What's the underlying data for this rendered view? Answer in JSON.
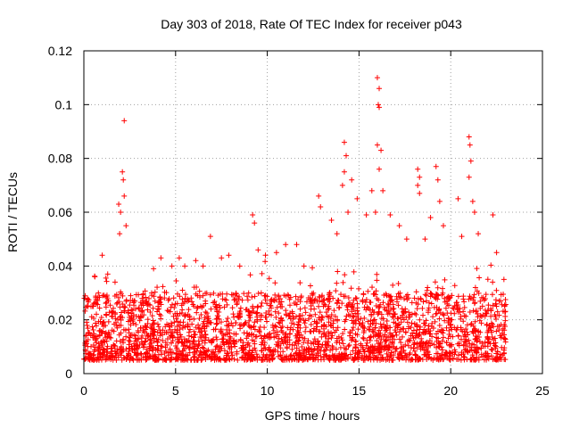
{
  "chart_data": {
    "type": "scatter",
    "title": "Day 303 of 2018, Rate Of TEC Index for receiver p043",
    "xlabel": "GPS time / hours",
    "ylabel": "ROTI / TECUs",
    "xlim": [
      0,
      25
    ],
    "ylim": [
      0,
      0.12
    ],
    "xticks": [
      0,
      5,
      10,
      15,
      20,
      25
    ],
    "yticks": [
      0,
      0.02,
      0.04,
      0.06,
      0.08,
      0.1,
      0.12
    ],
    "xtick_labels": [
      "0",
      "5",
      "10",
      "15",
      "20",
      "25"
    ],
    "ytick_labels": [
      "0",
      "0.02",
      "0.04",
      "0.06",
      "0.08",
      "0.1",
      "0.12"
    ],
    "grid": true,
    "marker": "+",
    "marker_color": "#ff0000",
    "x_data_range": [
      0,
      23
    ],
    "baseline_band": [
      0.005,
      0.03
    ],
    "series": [
      {
        "name": "ROTI",
        "note": "dense cloud of several thousand points, mostly 0.005–0.03 TECU; listed points are visible outliers/peaks",
        "points": [
          [
            2.2,
            0.094
          ],
          [
            2.1,
            0.075
          ],
          [
            2.15,
            0.072
          ],
          [
            2.2,
            0.066
          ],
          [
            1.9,
            0.063
          ],
          [
            2.0,
            0.06
          ],
          [
            1.95,
            0.052
          ],
          [
            2.3,
            0.055
          ],
          [
            1.0,
            0.044
          ],
          [
            0.6,
            0.036
          ],
          [
            1.3,
            0.037
          ],
          [
            1.7,
            0.034
          ],
          [
            3.8,
            0.039
          ],
          [
            4.2,
            0.043
          ],
          [
            4.8,
            0.04
          ],
          [
            5.2,
            0.043
          ],
          [
            5.5,
            0.04
          ],
          [
            6.1,
            0.042
          ],
          [
            6.5,
            0.04
          ],
          [
            6.9,
            0.051
          ],
          [
            7.5,
            0.043
          ],
          [
            7.9,
            0.044
          ],
          [
            8.5,
            0.04
          ],
          [
            9.2,
            0.059
          ],
          [
            9.3,
            0.056
          ],
          [
            9.5,
            0.046
          ],
          [
            9.9,
            0.044
          ],
          [
            10.5,
            0.045
          ],
          [
            11.0,
            0.048
          ],
          [
            11.6,
            0.048
          ],
          [
            12.0,
            0.04
          ],
          [
            12.8,
            0.066
          ],
          [
            12.9,
            0.062
          ],
          [
            13.5,
            0.057
          ],
          [
            13.8,
            0.052
          ],
          [
            14.2,
            0.086
          ],
          [
            14.3,
            0.081
          ],
          [
            14.2,
            0.075
          ],
          [
            14.1,
            0.07
          ],
          [
            14.4,
            0.06
          ],
          [
            14.6,
            0.072
          ],
          [
            14.9,
            0.065
          ],
          [
            15.4,
            0.059
          ],
          [
            15.7,
            0.068
          ],
          [
            15.9,
            0.06
          ],
          [
            16.0,
            0.11
          ],
          [
            16.1,
            0.106
          ],
          [
            16.05,
            0.1
          ],
          [
            16.1,
            0.099
          ],
          [
            16.0,
            0.085
          ],
          [
            16.2,
            0.083
          ],
          [
            16.1,
            0.076
          ],
          [
            16.3,
            0.068
          ],
          [
            16.7,
            0.059
          ],
          [
            17.2,
            0.055
          ],
          [
            17.6,
            0.05
          ],
          [
            18.2,
            0.076
          ],
          [
            18.3,
            0.073
          ],
          [
            18.2,
            0.07
          ],
          [
            18.3,
            0.067
          ],
          [
            18.6,
            0.05
          ],
          [
            18.9,
            0.058
          ],
          [
            19.2,
            0.077
          ],
          [
            19.3,
            0.072
          ],
          [
            19.4,
            0.064
          ],
          [
            19.6,
            0.055
          ],
          [
            20.4,
            0.065
          ],
          [
            20.6,
            0.051
          ],
          [
            21.0,
            0.088
          ],
          [
            21.05,
            0.085
          ],
          [
            21.1,
            0.079
          ],
          [
            21.0,
            0.073
          ],
          [
            21.2,
            0.064
          ],
          [
            21.3,
            0.06
          ],
          [
            21.5,
            0.052
          ],
          [
            22.3,
            0.059
          ],
          [
            22.5,
            0.045
          ],
          [
            22.9,
            0.035
          ]
        ]
      }
    ]
  }
}
